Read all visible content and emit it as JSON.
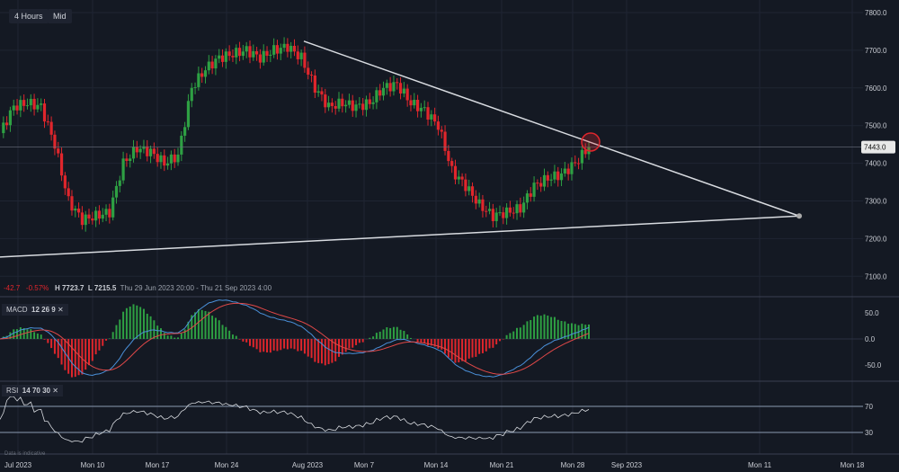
{
  "toolbar": {
    "interval": "4 Hours",
    "price_type": "Mid"
  },
  "info": {
    "change": "-42.7",
    "change_pct": "-0.57%",
    "high": "H 7723.7",
    "low": "L 7215.5",
    "range": "Thu 29 Jun 2023 20:00 - Thu 21 Sep 2023 4:00"
  },
  "macd": {
    "name": "MACD",
    "p1": "12",
    "p2": "26",
    "p3": "9",
    "close": "✕",
    "ticks": [
      "50.0",
      "0.0",
      "-50.0"
    ]
  },
  "rsi": {
    "name": "RSI",
    "p1": "14",
    "p2": "70",
    "p3": "30",
    "close": "✕",
    "ticks": [
      "70",
      "30"
    ]
  },
  "disclaimer": "Data is indicative",
  "colors": {
    "up": "#2ea043",
    "down": "#e0262c",
    "line": "#d8dbe0",
    "macd": "#4a90d9",
    "signal": "#e04848"
  },
  "chart_data": {
    "type": "candlestick",
    "ylim": [
      7050,
      7820
    ],
    "yticks": [
      "7800.0",
      "7700.0",
      "7600.0",
      "7500.0",
      "7400.0",
      "7300.0",
      "7200.0",
      "7100.0"
    ],
    "xticks": [
      "Jul 2023",
      "Mon 10",
      "Mon 17",
      "Mon 24",
      "Aug 2023",
      "Mon 7",
      "Mon 14",
      "Mon 21",
      "Mon 28",
      "Sep 2023",
      "Mon 11",
      "Mon 18"
    ],
    "last_price": "7443.0",
    "close": [
      7480,
      7550,
      7560,
      7550,
      7450,
      7300,
      7250,
      7260,
      7270,
      7400,
      7440,
      7430,
      7400,
      7420,
      7600,
      7650,
      7680,
      7690,
      7700,
      7680,
      7700,
      7710,
      7680,
      7600,
      7550,
      7560,
      7550,
      7560,
      7600,
      7610,
      7560,
      7540,
      7500,
      7380,
      7340,
      7290,
      7260,
      7270,
      7280,
      7340,
      7360,
      7370,
      7400,
      7443
    ],
    "trendlines": [
      {
        "from": 7724,
        "to": 7260
      },
      {
        "from": 7151,
        "to": 7260
      }
    ]
  }
}
